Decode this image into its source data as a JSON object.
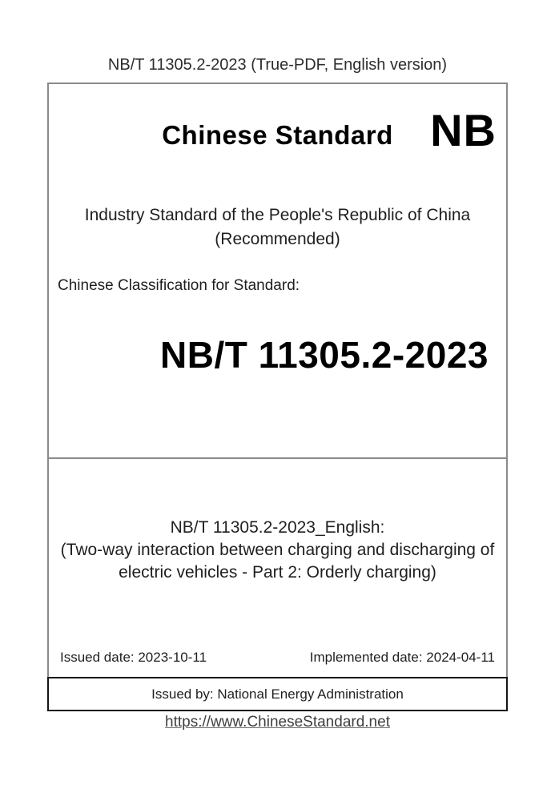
{
  "header": {
    "line": "NB/T 11305.2-2023 (True-PDF, English version)"
  },
  "cover": {
    "brand_title": "Chinese Standard",
    "brand_logo": "NB",
    "subtitle_line1": "Industry Standard of the People's Republic of China",
    "subtitle_line2": "(Recommended)",
    "classification_label": "Chinese Classification for Standard:",
    "standard_number": "NB/T 11305.2-2023"
  },
  "details": {
    "english_title_line1": "NB/T 11305.2-2023_English:",
    "english_title_line2": "(Two-way interaction between charging and discharging of",
    "english_title_line3": "electric vehicles - Part 2: Orderly charging)",
    "issued_date": "Issued date: 2023-10-11",
    "implemented_date": "Implemented date: 2024-04-11"
  },
  "issuer": {
    "line": "Issued by: National Energy Administration"
  },
  "footer": {
    "link_text": "https://www.ChineseStandard.net"
  },
  "colors": {
    "box_border_gray": "#8a8a8a",
    "issuer_border_black": "#151515",
    "text_black": "#1f1f1f",
    "link_gray": "#3f3f3f",
    "background": "#ffffff"
  }
}
